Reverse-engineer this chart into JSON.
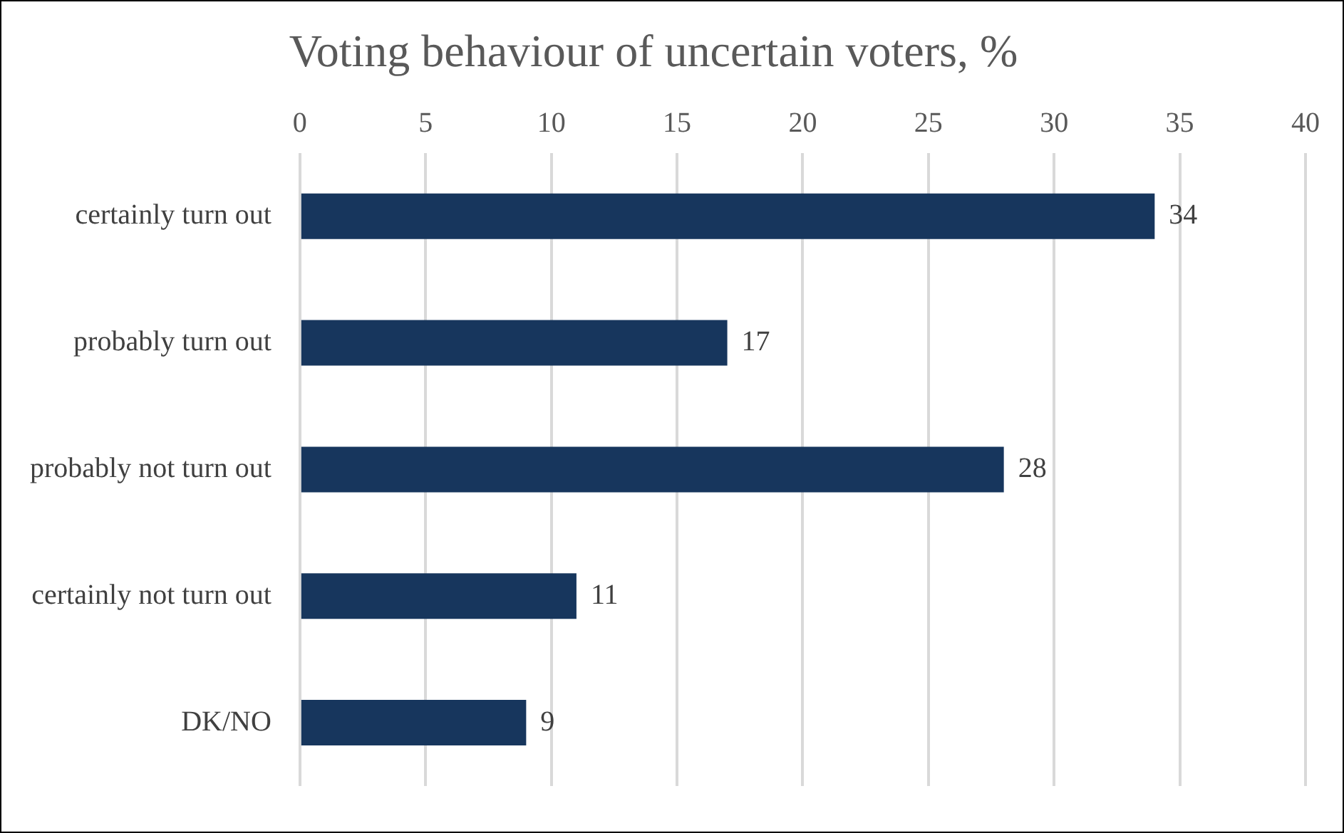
{
  "chart_data": {
    "type": "bar",
    "orientation": "horizontal",
    "title": "Voting behaviour of uncertain voters, %",
    "categories": [
      "certainly turn out",
      "probably turn out",
      "probably not turn out",
      "certainly not turn out",
      "DK/NO"
    ],
    "values": [
      34,
      17,
      28,
      11,
      9
    ],
    "color": "#17365d",
    "xlim": [
      0,
      40
    ],
    "xticks": [
      0,
      5,
      10,
      15,
      20,
      25,
      30,
      35,
      40
    ],
    "grid": "x",
    "legend": false,
    "data_labels": true
  }
}
